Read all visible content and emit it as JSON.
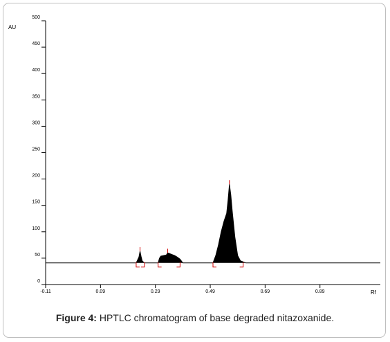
{
  "figure": {
    "caption_label": "Figure 4:",
    "caption_text": " HPTLC chromatogram of base degraded nitazoxanide."
  },
  "chart_data": {
    "type": "line",
    "xlabel": "Rf",
    "ylabel": "AU",
    "xlim": [
      -0.11,
      1.11
    ],
    "ylim": [
      0,
      500
    ],
    "x_ticks": [
      -0.11,
      0.09,
      0.29,
      0.49,
      0.69,
      0.89
    ],
    "x_tick_labels": [
      "-0.11",
      "0.09",
      "0.29",
      "0.49",
      "0.69",
      "0.89"
    ],
    "y_ticks": [
      0,
      50,
      100,
      150,
      200,
      250,
      300,
      350,
      400,
      450,
      500
    ],
    "y_tick_labels": [
      "0",
      "50",
      "100",
      "150",
      "200",
      "250",
      "300",
      "350",
      "400",
      "450",
      "500"
    ],
    "baseline": 41,
    "series": [
      {
        "x": [
          -0.11,
          0.22,
          0.23,
          0.234,
          0.238,
          0.242,
          0.25,
          0.26,
          0.3,
          0.305,
          0.31,
          0.32,
          0.33,
          0.335,
          0.34,
          0.35,
          0.36,
          0.37,
          0.38,
          0.39,
          0.5,
          0.51,
          0.52,
          0.53,
          0.54,
          0.55,
          0.555,
          0.56,
          0.565,
          0.57,
          0.58,
          0.59,
          0.6,
          0.62,
          1.11
        ],
        "y": [
          41,
          41,
          52,
          63,
          53,
          45,
          41,
          41,
          41,
          50,
          54,
          55,
          56,
          60,
          59,
          57,
          55,
          52,
          48,
          41,
          41,
          55,
          75,
          100,
          120,
          135,
          160,
          190,
          170,
          140,
          90,
          55,
          45,
          41,
          41
        ]
      }
    ],
    "peaks": [
      {
        "rf": 0.234,
        "height": 63,
        "start": 0.22,
        "end": 0.25
      },
      {
        "rf": 0.335,
        "height": 60,
        "start": 0.3,
        "end": 0.38
      },
      {
        "rf": 0.56,
        "height": 190,
        "start": 0.5,
        "end": 0.61
      }
    ],
    "colors": {
      "fill": "#000000",
      "marker": "#d00000"
    }
  }
}
